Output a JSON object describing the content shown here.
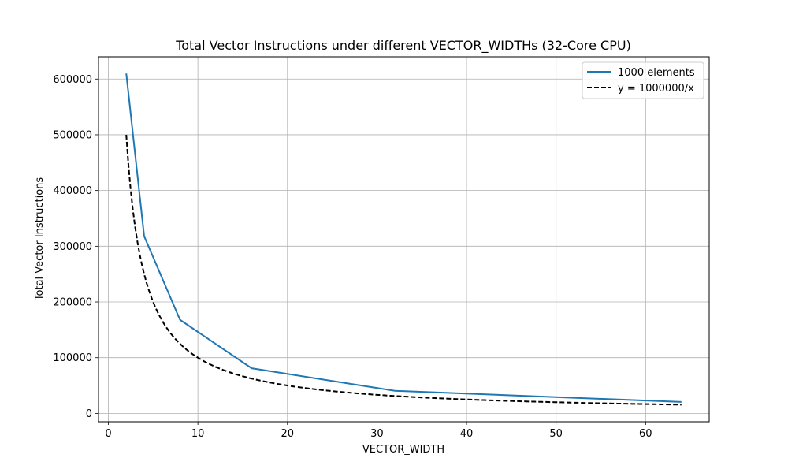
{
  "chart_data": {
    "type": "line",
    "title": "Total Vector Instructions under different VECTOR_WIDTHs (32-Core CPU)",
    "xlabel": "VECTOR_WIDTH",
    "ylabel": "Total Vector Instructions",
    "xlim": [
      -1.1,
      67.1
    ],
    "ylim": [
      -15000,
      640000
    ],
    "xticks": [
      0,
      10,
      20,
      30,
      40,
      50,
      60
    ],
    "yticks": [
      0,
      100000,
      200000,
      300000,
      400000,
      500000,
      600000
    ],
    "xtick_labels": [
      "0",
      "10",
      "20",
      "30",
      "40",
      "50",
      "60"
    ],
    "ytick_labels": [
      "0",
      "100000",
      "200000",
      "300000",
      "400000",
      "500000",
      "600000"
    ],
    "grid": true,
    "legend_position": "top-right",
    "series": [
      {
        "name": "1000 elements",
        "color": "#1f77b4",
        "style": "solid",
        "x": [
          2,
          4,
          8,
          16,
          32,
          64
        ],
        "values": [
          610000,
          318000,
          168000,
          81000,
          40500,
          20500
        ]
      },
      {
        "name": "y = 1000000/x",
        "color": "#000000",
        "style": "dashed",
        "function": "1000000/x",
        "x_range": [
          2,
          64
        ]
      }
    ]
  }
}
